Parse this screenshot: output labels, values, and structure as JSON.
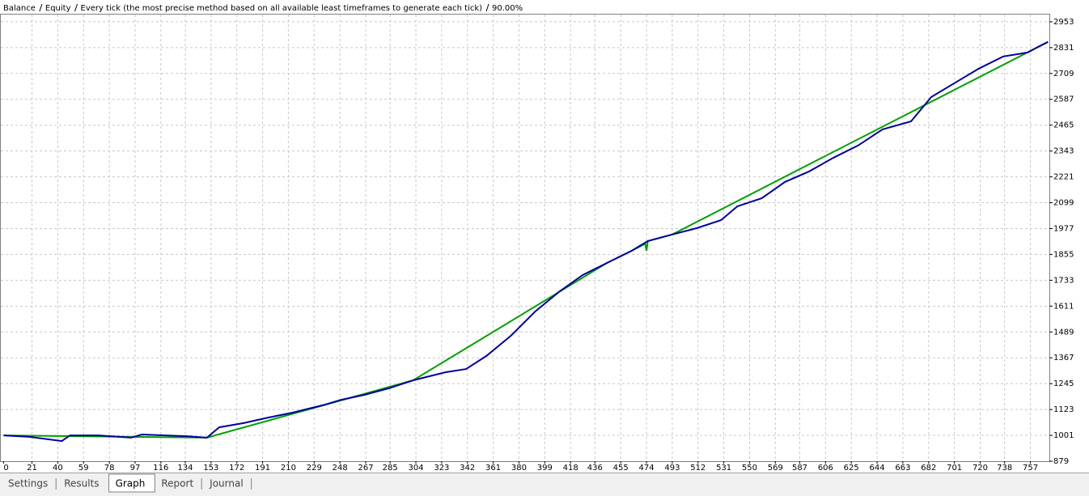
{
  "chart_data": {
    "type": "line",
    "subtitle": "Every tick (the most precise method based on all available least timeframes to generate each tick)",
    "modelling_quality": "90.00%",
    "series": [
      {
        "name": "Equity",
        "color": "#00a000",
        "x": [
          0,
          150,
          302,
          445,
          463,
          473,
          474,
          475,
          493,
          770
        ],
        "values": [
          1001,
          990,
          1261,
          1815,
          1872,
          1905,
          1872,
          1918,
          1949,
          2858
        ]
      },
      {
        "name": "Balance",
        "color": "#0000a0",
        "x": [
          0,
          19,
          43,
          49,
          70,
          94,
          102,
          135,
          150,
          159,
          177,
          195,
          213,
          237,
          249,
          266,
          284,
          302,
          326,
          341,
          356,
          374,
          392,
          410,
          427,
          445,
          463,
          475,
          493,
          511,
          529,
          541,
          559,
          576,
          594,
          612,
          630,
          648,
          669,
          684,
          701,
          719,
          737,
          755,
          764,
          770
        ],
        "values": [
          1001,
          994,
          974,
          1001,
          1001,
          990,
          1005,
          997,
          990,
          1039,
          1059,
          1085,
          1108,
          1146,
          1169,
          1192,
          1223,
          1261,
          1299,
          1314,
          1376,
          1471,
          1586,
          1681,
          1758,
          1815,
          1872,
          1918,
          1949,
          1979,
          2017,
          2082,
          2120,
          2197,
          2247,
          2312,
          2369,
          2445,
          2483,
          2598,
          2663,
          2732,
          2789,
          2808,
          2839,
          2858
        ]
      }
    ],
    "xlim": [
      -2,
      771
    ],
    "xticks": [
      0,
      21,
      40,
      59,
      78,
      97,
      116,
      134,
      153,
      172,
      191,
      210,
      229,
      248,
      267,
      285,
      304,
      323,
      342,
      361,
      380,
      399,
      418,
      436,
      455,
      474,
      493,
      512,
      531,
      550,
      569,
      587,
      606,
      625,
      644,
      663,
      682,
      701,
      720,
      738,
      757
    ],
    "ylim": [
      879,
      2987
    ],
    "yticks": [
      879,
      1001,
      1123,
      1245,
      1367,
      1489,
      1611,
      1733,
      1855,
      1977,
      2099,
      2221,
      2343,
      2465,
      2587,
      2709,
      2831,
      2953
    ],
    "grid": true
  },
  "tabs": [
    "Settings",
    "Results",
    "Graph",
    "Report",
    "Journal"
  ],
  "active_tab": 2
}
